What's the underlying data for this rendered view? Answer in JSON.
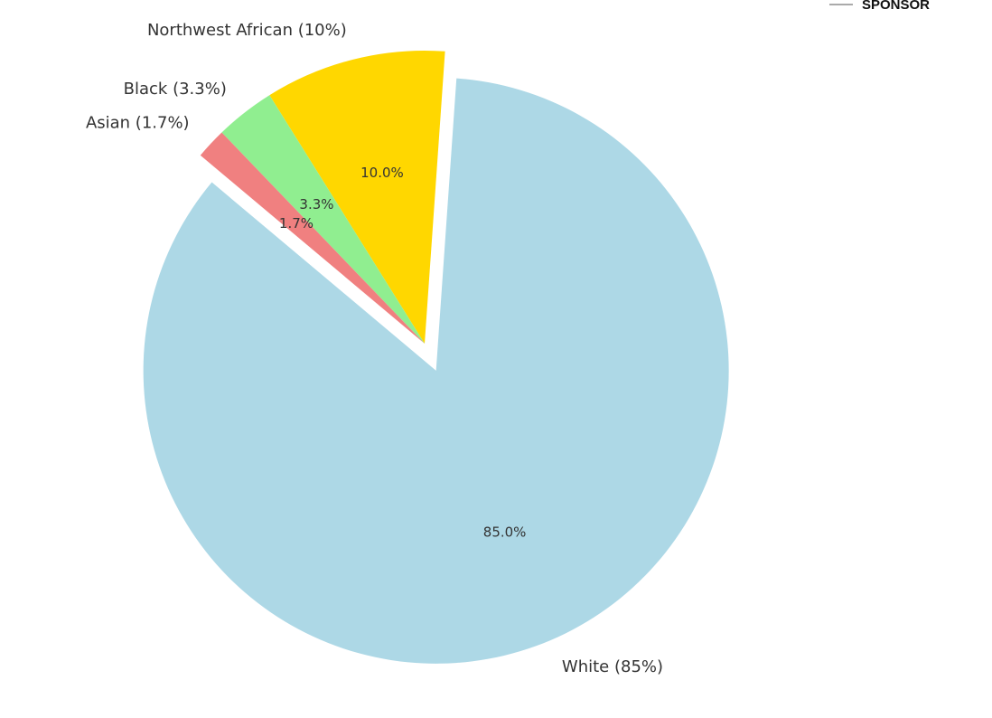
{
  "sponsor": "SPONSOR",
  "chart_data": {
    "type": "pie",
    "categories": [
      "White (85%)",
      "Northwest African (10%)",
      "Black (3.3%)",
      "Asian (1.7%)"
    ],
    "values": [
      85,
      10,
      3.3,
      1.7
    ],
    "value_labels": [
      "85.0%",
      "10.0%",
      "3.3%",
      "1.7%"
    ],
    "colors": [
      "#add8e6",
      "#ffd700",
      "#90ee90",
      "#f08080"
    ],
    "explode": [
      0.1,
      0,
      0,
      0
    ],
    "start_angle": 140
  }
}
